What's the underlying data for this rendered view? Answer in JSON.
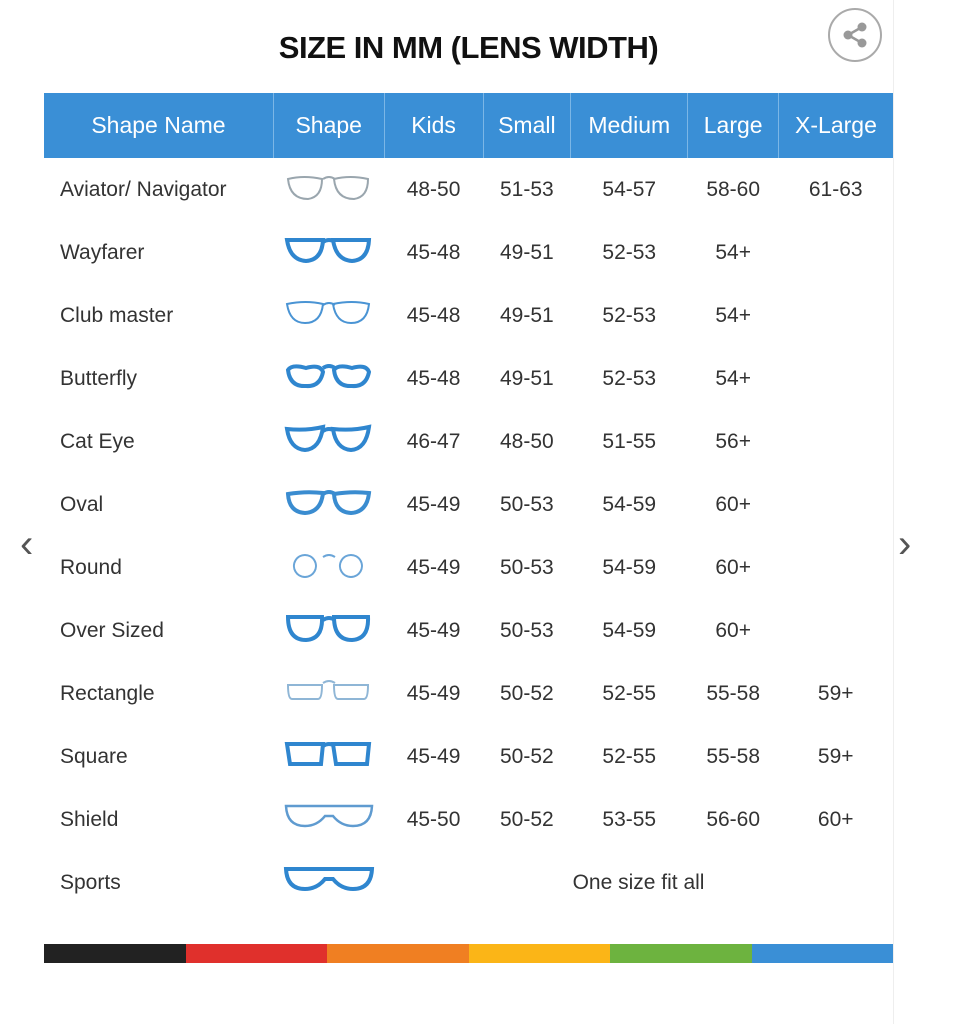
{
  "title": "SIZE IN MM (LENS WIDTH)",
  "share_icon": "share-icon",
  "nav": {
    "prev_icon": "chevron-left-icon",
    "next_icon": "chevron-right-icon",
    "prev": "‹",
    "next": "›"
  },
  "columns": [
    "Shape Name",
    "Shape",
    "Kids",
    "Small",
    "Medium",
    "Large",
    "X-Large"
  ],
  "rows": [
    {
      "name": "Aviator/ Navigator",
      "icon": "aviator",
      "color": "#9aa6ae",
      "sizes": [
        "48-50",
        "51-53",
        "54-57",
        "58-60",
        "61-63"
      ]
    },
    {
      "name": "Wayfarer",
      "icon": "wayfarer",
      "color": "#2f86cf",
      "sizes": [
        "45-48",
        "49-51",
        "52-53",
        "54+",
        ""
      ]
    },
    {
      "name": "Club master",
      "icon": "clubmaster",
      "color": "#4a94d4",
      "sizes": [
        "45-48",
        "49-51",
        "52-53",
        "54+",
        ""
      ]
    },
    {
      "name": "Butterfly",
      "icon": "butterfly",
      "color": "#2f86cf",
      "sizes": [
        "45-48",
        "49-51",
        "52-53",
        "54+",
        ""
      ]
    },
    {
      "name": "Cat Eye",
      "icon": "cateye",
      "color": "#2f86cf",
      "sizes": [
        "46-47",
        "48-50",
        "51-55",
        "56+",
        ""
      ]
    },
    {
      "name": "Oval",
      "icon": "oval",
      "color": "#3a8cd0",
      "sizes": [
        "45-49",
        "50-53",
        "54-59",
        "60+",
        ""
      ]
    },
    {
      "name": "Round",
      "icon": "round",
      "color": "#6aa5d8",
      "sizes": [
        "45-49",
        "50-53",
        "54-59",
        "60+",
        ""
      ]
    },
    {
      "name": "Over Sized",
      "icon": "oversized",
      "color": "#2f86cf",
      "sizes": [
        "45-49",
        "50-53",
        "54-59",
        "60+",
        ""
      ]
    },
    {
      "name": "Rectangle",
      "icon": "rectangle",
      "color": "#8fb6d6",
      "sizes": [
        "45-49",
        "50-52",
        "52-55",
        "55-58",
        "59+"
      ]
    },
    {
      "name": "Square",
      "icon": "square",
      "color": "#2f86cf",
      "sizes": [
        "45-49",
        "50-52",
        "52-55",
        "55-58",
        "59+"
      ]
    },
    {
      "name": "Shield",
      "icon": "shield",
      "color": "#5f9bd0",
      "sizes": [
        "45-50",
        "50-52",
        "53-55",
        "56-60",
        "60+"
      ]
    },
    {
      "name": "Sports",
      "icon": "sports",
      "color": "#2f86cf",
      "note": "One size fit all"
    }
  ],
  "colors": {
    "header": "#3a8fd6",
    "stripe": [
      "#222222",
      "#e0302c",
      "#f07f22",
      "#fbb517",
      "#6db33f",
      "#3a8fd6"
    ]
  }
}
